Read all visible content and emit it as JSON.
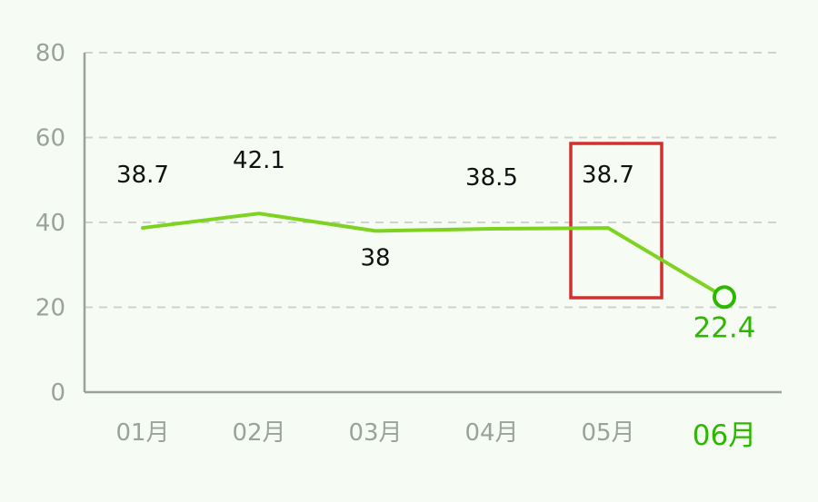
{
  "chart_data": {
    "type": "line",
    "categories": [
      "01月",
      "02月",
      "03月",
      "04月",
      "05月",
      "06月"
    ],
    "values": [
      38.7,
      42.1,
      38,
      38.5,
      38.7,
      22.4
    ],
    "data_labels": [
      "38.7",
      "42.1",
      "38",
      "38.5",
      "38.7",
      "22.4"
    ],
    "yticks": [
      "0",
      "20",
      "40",
      "60",
      "80"
    ],
    "ylim": [
      0,
      80
    ],
    "grid": true,
    "highlight_index": 5,
    "boxed_index": 4,
    "colors": {
      "line": "#7ed321",
      "highlight": "#2db800",
      "box": "#d32f2f",
      "axis": "#9aa39a",
      "grid": "#cfd3cf"
    }
  }
}
